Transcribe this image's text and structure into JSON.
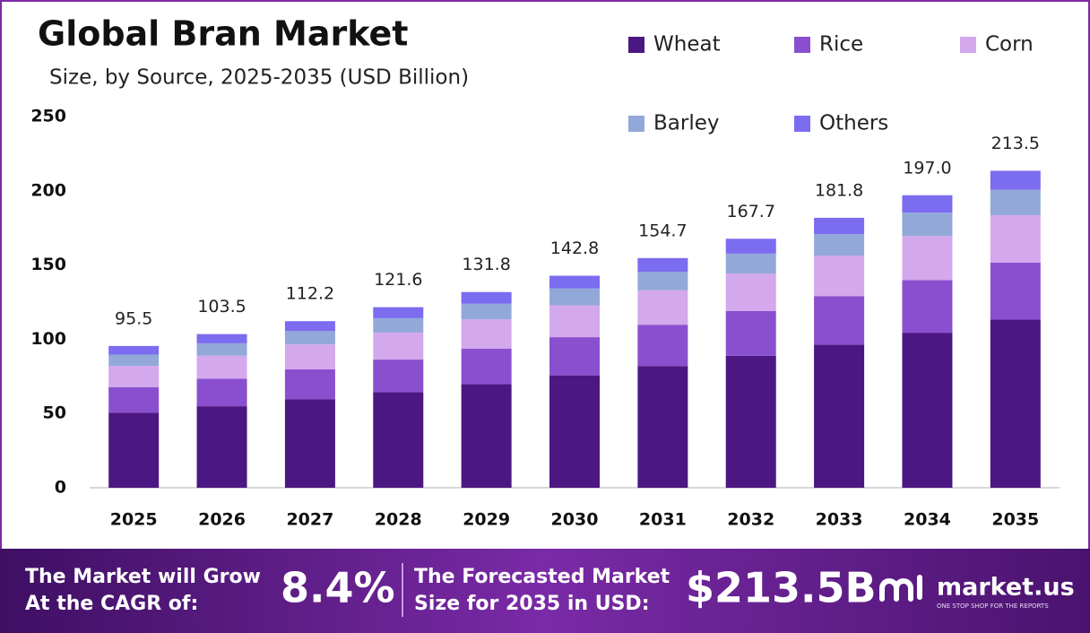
{
  "chart_data": {
    "type": "stacked-bar",
    "title": "Global Bran Market",
    "subtitle": "Size, by Source, 2025-2035 (USD Billion)",
    "categories": [
      "2025",
      "2026",
      "2027",
      "2028",
      "2029",
      "2030",
      "2031",
      "2032",
      "2033",
      "2034",
      "2035"
    ],
    "series": [
      {
        "name": "Wheat",
        "color": "#4b1782",
        "values": [
          50.6,
          54.9,
          59.5,
          64.4,
          69.9,
          75.7,
          82.0,
          88.9,
          96.4,
          104.4,
          113.2
        ]
      },
      {
        "name": "Rice",
        "color": "#8a4fcf",
        "values": [
          17.2,
          18.6,
          20.2,
          21.9,
          23.7,
          25.7,
          27.8,
          30.2,
          32.7,
          35.5,
          38.4
        ]
      },
      {
        "name": "Corn",
        "color": "#d4a8ec",
        "values": [
          14.3,
          15.5,
          16.8,
          18.2,
          19.8,
          21.4,
          23.2,
          25.2,
          27.3,
          29.6,
          32.0
        ]
      },
      {
        "name": "Barley",
        "color": "#92a8d8",
        "values": [
          7.6,
          8.3,
          9.0,
          9.7,
          10.5,
          11.4,
          12.4,
          13.4,
          14.5,
          15.8,
          17.1
        ]
      },
      {
        "name": "Others",
        "color": "#7b6cf0",
        "values": [
          5.8,
          6.2,
          6.7,
          7.4,
          7.9,
          8.6,
          9.3,
          10.0,
          10.9,
          11.7,
          12.8
        ]
      }
    ],
    "totals": {
      "values": [
        95.5,
        103.5,
        112.2,
        121.6,
        131.8,
        142.8,
        154.7,
        167.7,
        181.8,
        197.0,
        213.5
      ],
      "value_labels": [
        "95.5",
        "103.5",
        "112.2",
        "121.6",
        "131.8",
        "142.8",
        "154.7",
        "167.7",
        "181.8",
        "197.0",
        "213.5"
      ]
    },
    "ylim": [
      0,
      250
    ],
    "yticks": [
      0,
      50,
      100,
      150,
      200,
      250
    ],
    "grid": false
  },
  "footer": {
    "cagr_text": [
      "The Market will Grow",
      "At the CAGR of:"
    ],
    "cagr_value": "8.4%",
    "forecast_text": [
      "The Forecasted Market",
      "Size for 2035 in USD:"
    ],
    "forecast_value": "$213.5B",
    "brand": "market.us",
    "tagline": "ONE STOP SHOP FOR THE REPORTS"
  }
}
